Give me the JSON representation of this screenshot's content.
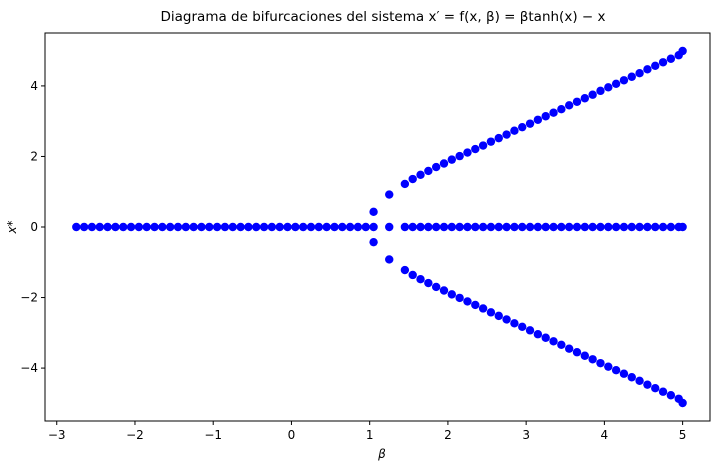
{
  "chart_data": {
    "type": "scatter",
    "title": "Diagrama de bifurcaciones del sistema x′ = f(x, β) = βtanh(x) − x",
    "xlabel": "β",
    "ylabel": "x*",
    "xlim": [
      -3.15,
      5.35
    ],
    "ylim": [
      -5.5,
      5.5
    ],
    "xticks": [
      -3,
      -2,
      -1,
      0,
      1,
      2,
      3,
      4,
      5
    ],
    "xtick_labels": [
      "−3",
      "−2",
      "−1",
      "0",
      "1",
      "2",
      "3",
      "4",
      "5"
    ],
    "yticks": [
      -4,
      -2,
      0,
      2,
      4
    ],
    "ytick_labels": [
      "−4",
      "−2",
      "0",
      "2",
      "4"
    ],
    "marker_color": "#0000ff",
    "grid": false,
    "series": [
      {
        "x": [
          -2.75,
          -2.65,
          -2.55,
          -2.45,
          -2.35,
          -2.25,
          -2.15,
          -2.05,
          -1.95,
          -1.85,
          -1.75,
          -1.65,
          -1.55,
          -1.45,
          -1.35,
          -1.25,
          -1.15,
          -1.05,
          -0.95,
          -0.85,
          -0.75,
          -0.65,
          -0.55,
          -0.45,
          -0.35,
          -0.25,
          -0.15,
          -0.05,
          0.05,
          0.15,
          0.25,
          0.35,
          0.45,
          0.55,
          0.65,
          0.75,
          0.85,
          0.95,
          1.05,
          1.25,
          1.45,
          1.55,
          1.65,
          1.75,
          1.85,
          1.95,
          2.05,
          2.15,
          2.25,
          2.35,
          2.45,
          2.55,
          2.65,
          2.75,
          2.85,
          2.95,
          3.05,
          3.15,
          3.25,
          3.35,
          3.45,
          3.55,
          3.65,
          3.75,
          3.85,
          3.95,
          4.05,
          4.15,
          4.25,
          4.35,
          4.45,
          4.55,
          4.65,
          4.75,
          4.85,
          4.95,
          5.0
        ],
        "y": [
          0,
          0,
          0,
          0,
          0,
          0,
          0,
          0,
          0,
          0,
          0,
          0,
          0,
          0,
          0,
          0,
          0,
          0,
          0,
          0,
          0,
          0,
          0,
          0,
          0,
          0,
          0,
          0,
          0,
          0,
          0,
          0,
          0,
          0,
          0,
          0,
          0,
          0,
          0,
          0,
          0,
          0,
          0,
          0,
          0,
          0,
          0,
          0,
          0,
          0,
          0,
          0,
          0,
          0,
          0,
          0,
          0,
          0,
          0,
          0,
          0,
          0,
          0,
          0,
          0,
          0,
          0,
          0,
          0,
          0,
          0,
          0,
          0,
          0,
          0,
          0,
          0
        ]
      },
      {
        "x": [
          1.05,
          1.25,
          1.45,
          1.55,
          1.65,
          1.75,
          1.85,
          1.95,
          2.05,
          2.15,
          2.25,
          2.35,
          2.45,
          2.55,
          2.65,
          2.75,
          2.85,
          2.95,
          3.05,
          3.15,
          3.25,
          3.35,
          3.45,
          3.55,
          3.65,
          3.75,
          3.85,
          3.95,
          4.05,
          4.15,
          4.25,
          4.35,
          4.45,
          4.55,
          4.65,
          4.75,
          4.85,
          4.95,
          5.0
        ],
        "y": [
          0.43,
          0.92,
          1.22,
          1.36,
          1.48,
          1.59,
          1.7,
          1.8,
          1.91,
          2.01,
          2.11,
          2.21,
          2.31,
          2.42,
          2.52,
          2.62,
          2.73,
          2.83,
          2.93,
          3.04,
          3.14,
          3.24,
          3.34,
          3.45,
          3.55,
          3.65,
          3.75,
          3.86,
          3.96,
          4.06,
          4.16,
          4.26,
          4.36,
          4.47,
          4.57,
          4.67,
          4.77,
          4.87,
          4.99
        ]
      },
      {
        "x": [
          1.05,
          1.25,
          1.45,
          1.55,
          1.65,
          1.75,
          1.85,
          1.95,
          2.05,
          2.15,
          2.25,
          2.35,
          2.45,
          2.55,
          2.65,
          2.75,
          2.85,
          2.95,
          3.05,
          3.15,
          3.25,
          3.35,
          3.45,
          3.55,
          3.65,
          3.75,
          3.85,
          3.95,
          4.05,
          4.15,
          4.25,
          4.35,
          4.45,
          4.55,
          4.65,
          4.75,
          4.85,
          4.95,
          5.0
        ],
        "y": [
          -0.43,
          -0.92,
          -1.22,
          -1.36,
          -1.48,
          -1.59,
          -1.7,
          -1.8,
          -1.91,
          -2.01,
          -2.11,
          -2.21,
          -2.31,
          -2.42,
          -2.52,
          -2.62,
          -2.73,
          -2.83,
          -2.93,
          -3.04,
          -3.14,
          -3.24,
          -3.34,
          -3.45,
          -3.55,
          -3.65,
          -3.75,
          -3.86,
          -3.96,
          -4.06,
          -4.16,
          -4.26,
          -4.36,
          -4.47,
          -4.57,
          -4.67,
          -4.77,
          -4.87,
          -4.99
        ]
      }
    ]
  }
}
